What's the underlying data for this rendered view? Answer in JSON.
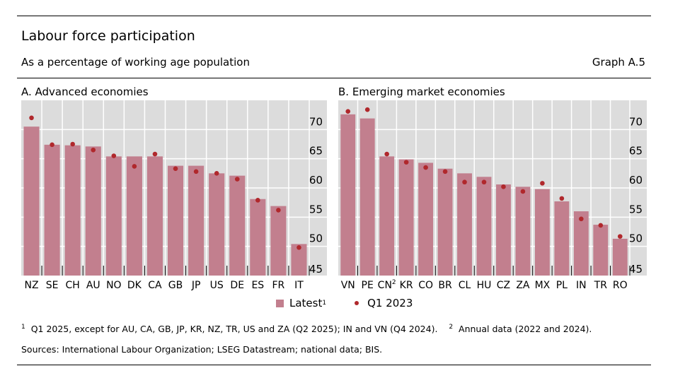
{
  "header": {
    "title": "Labour force participation",
    "subtitle": "As a percentage of working age population",
    "graph_number": "Graph A.5"
  },
  "legend": {
    "bar_label": "Latest",
    "bar_footnote": "1",
    "dot_label": "Q1 2023"
  },
  "footnotes": {
    "note1_marker": "1",
    "note1": "Q1 2025, except for AU, CA, GB, JP, KR, NZ, TR, US and ZA (Q2 2025); IN and VN (Q4 2024).",
    "note2_marker": "2",
    "note2": "Annual data (2022 and 2024).",
    "sources": "Sources: International Labour Organization; LSEG Datastream; national data; BIS."
  },
  "colors": {
    "bar": "#c27f8e",
    "dot": "#b0282c",
    "plot_bg": "#dcdcdc"
  },
  "chart_data": [
    {
      "type": "bar",
      "title": "A. Advanced economies",
      "ylim": [
        45,
        75
      ],
      "yticks": [
        45,
        50,
        55,
        60,
        65,
        70
      ],
      "y_axis_side": "right",
      "grid": true,
      "categories": [
        "NZ",
        "SE",
        "CH",
        "AU",
        "NO",
        "DK",
        "CA",
        "GB",
        "JP",
        "US",
        "DE",
        "ES",
        "FR",
        "IT"
      ],
      "category_footnotes": {},
      "series": [
        {
          "name": "Latest",
          "type": "bar",
          "values": [
            70.5,
            67.4,
            67.3,
            67.1,
            65.4,
            65.4,
            65.4,
            63.8,
            63.8,
            62.5,
            62.1,
            58.1,
            56.9,
            50.4
          ]
        },
        {
          "name": "Q1 2023",
          "type": "dot",
          "values": [
            72.0,
            67.4,
            67.5,
            66.5,
            65.5,
            63.7,
            65.8,
            63.3,
            62.8,
            62.5,
            61.5,
            57.9,
            56.2,
            49.8
          ]
        }
      ]
    },
    {
      "type": "bar",
      "title": "B. Emerging market economies",
      "ylim": [
        45,
        75
      ],
      "yticks": [
        45,
        50,
        55,
        60,
        65,
        70
      ],
      "y_axis_side": "right",
      "grid": true,
      "categories": [
        "VN",
        "PE",
        "CN",
        "KR",
        "CO",
        "BR",
        "CL",
        "HU",
        "CZ",
        "ZA",
        "MX",
        "PL",
        "IN",
        "TR",
        "RO"
      ],
      "category_footnotes": {
        "CN": "2"
      },
      "series": [
        {
          "name": "Latest",
          "type": "bar",
          "values": [
            72.6,
            71.9,
            65.4,
            64.9,
            64.3,
            63.3,
            62.5,
            61.9,
            60.6,
            60.2,
            59.8,
            57.7,
            56.0,
            53.7,
            51.3
          ]
        },
        {
          "name": "Q1 2023",
          "type": "dot",
          "values": [
            73.1,
            73.4,
            65.8,
            64.4,
            63.5,
            62.8,
            61.0,
            61.0,
            60.2,
            59.4,
            60.8,
            58.2,
            54.7,
            53.6,
            51.7
          ]
        }
      ]
    }
  ]
}
